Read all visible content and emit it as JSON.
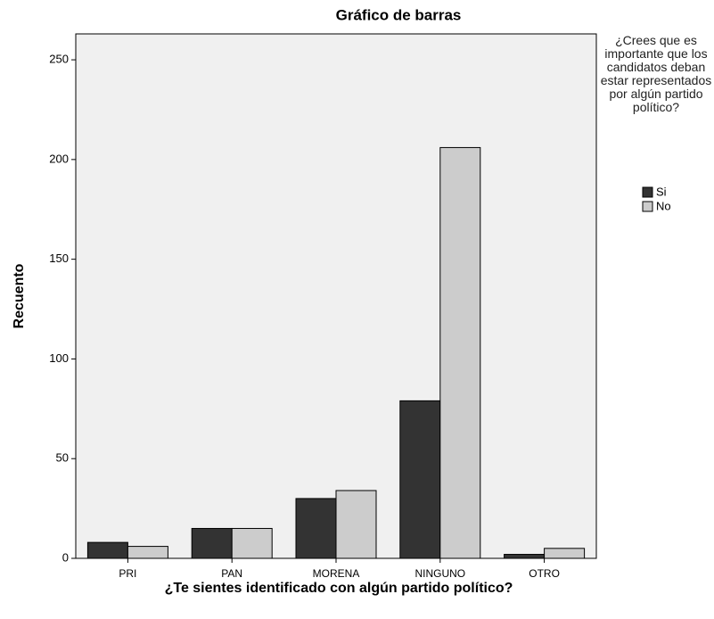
{
  "chart_data": {
    "type": "bar",
    "title": "Gráfico de barras",
    "x_label": "¿Te sientes identificado con algún partido político?",
    "y_label": "Recuento",
    "legend_title": "¿Crees que es importante que los candidatos deban estar representados por algún partido político?",
    "categories": [
      "PRI",
      "PAN",
      "MORENA",
      "NINGUNO",
      "OTRO"
    ],
    "series": [
      {
        "name": "Si",
        "color": "#333333",
        "values": [
          8,
          15,
          30,
          79,
          2
        ]
      },
      {
        "name": "No",
        "color": "#cccccc",
        "values": [
          6,
          15,
          34,
          206,
          5
        ]
      }
    ],
    "ylim": [
      0,
      263
    ],
    "yticks": [
      0,
      50,
      100,
      150,
      200,
      250
    ],
    "grid": false,
    "legend": "right"
  }
}
